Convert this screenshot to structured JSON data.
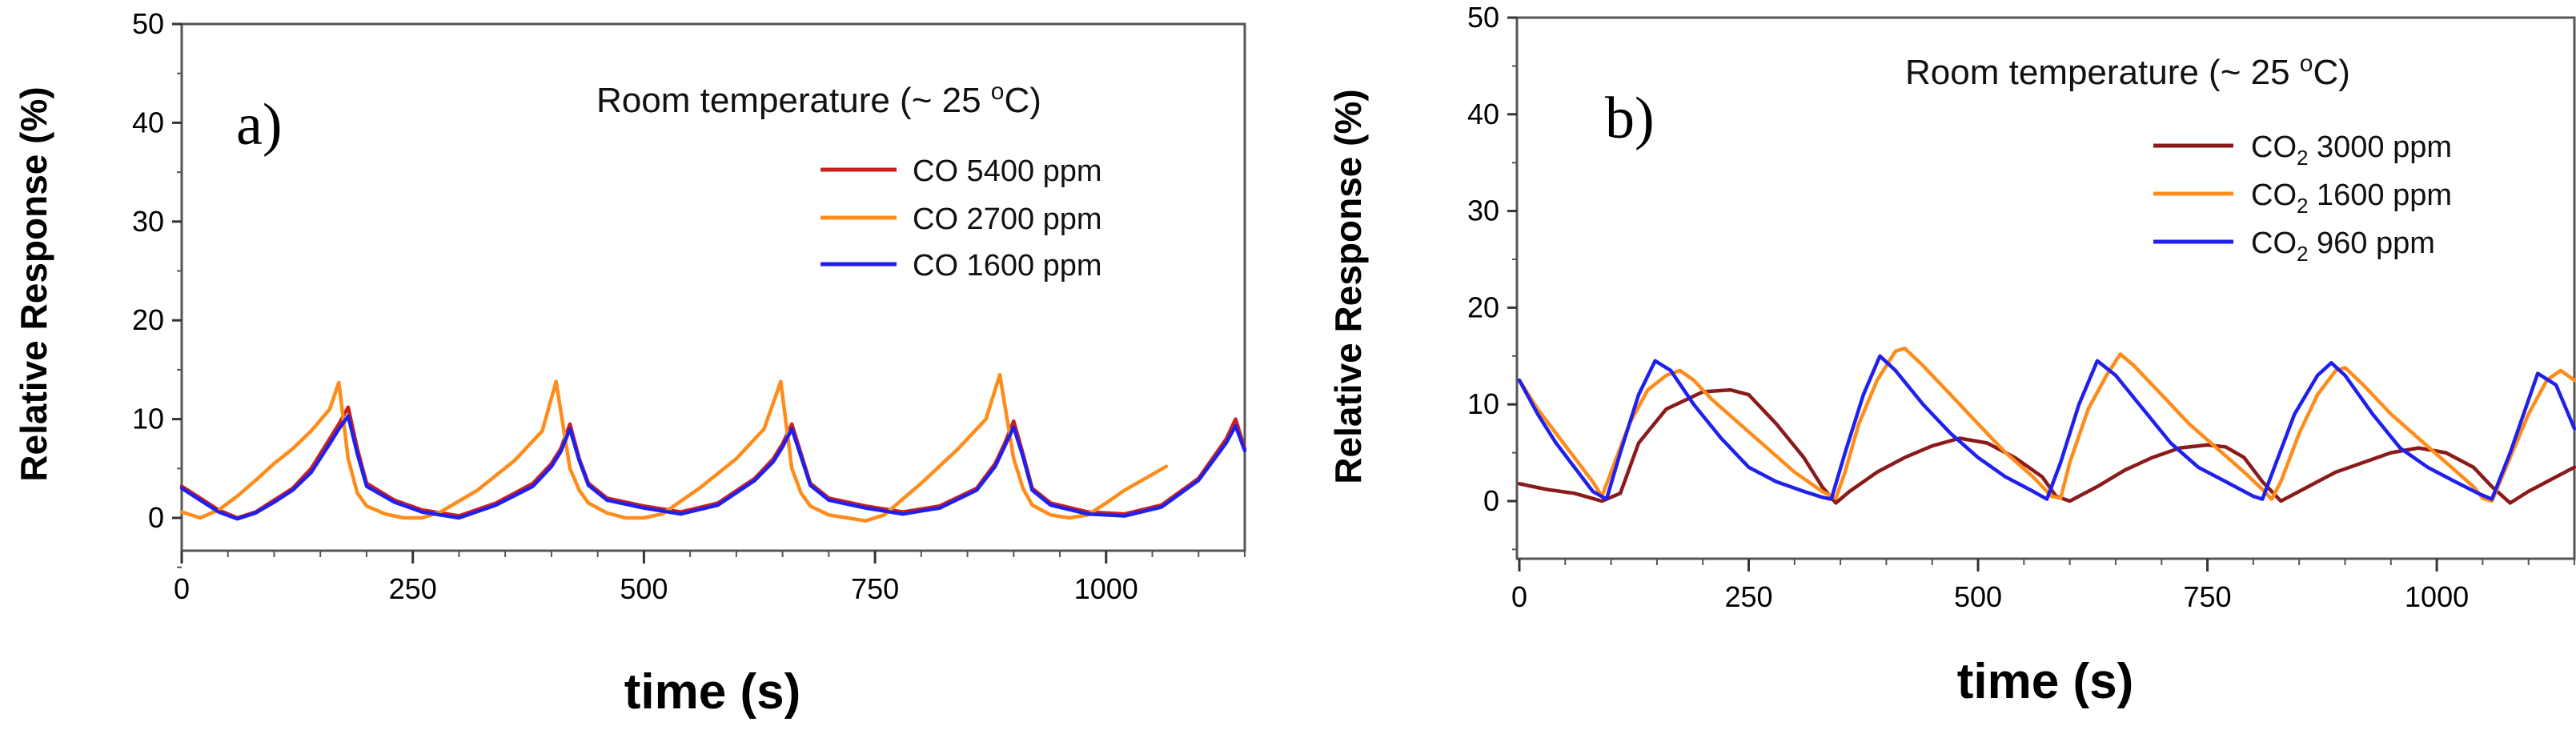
{
  "chart_data": [
    {
      "type": "line",
      "panel_label": "a)",
      "title": "Room temperature (~ 25 ",
      "title_sup": "o",
      "title_end": "C)",
      "xlabel": "time (s)",
      "ylabel": "Relative Response (%)",
      "xlim": [
        0,
        1150
      ],
      "ylim": [
        -5,
        50
      ],
      "xticks": [
        0,
        250,
        500,
        750,
        1000
      ],
      "yticks": [
        0,
        10,
        20,
        30,
        40,
        50
      ],
      "legend_position": "top-right",
      "series": [
        {
          "name": "CO 5400 ppm",
          "color": "#cc1f1f",
          "x": [
            0,
            20,
            40,
            60,
            80,
            100,
            120,
            140,
            160,
            170,
            180,
            190,
            200,
            230,
            260,
            300,
            340,
            380,
            400,
            410,
            420,
            430,
            440,
            460,
            500,
            540,
            580,
            620,
            640,
            650,
            660,
            670,
            680,
            700,
            740,
            780,
            820,
            860,
            880,
            890,
            900,
            910,
            920,
            940,
            980,
            1020,
            1060,
            1100,
            1130,
            1140,
            1150
          ],
          "y": [
            3.2,
            2,
            0.8,
            0,
            0.6,
            1.8,
            3,
            5,
            8,
            9.5,
            11.2,
            7,
            3.5,
            1.8,
            0.8,
            0.2,
            1.5,
            3.5,
            5.5,
            7,
            9.5,
            6,
            3.5,
            2,
            1.2,
            0.6,
            1.5,
            4,
            6,
            7.5,
            9.5,
            6.5,
            3.5,
            2,
            1.2,
            0.6,
            1.2,
            3,
            5.5,
            7.5,
            9.8,
            6.5,
            3,
            1.5,
            0.6,
            0.4,
            1.3,
            4,
            8,
            10,
            7
          ]
        },
        {
          "name": "CO 2700 ppm",
          "color": "#ff8c1a",
          "x": [
            0,
            20,
            40,
            60,
            80,
            100,
            120,
            140,
            160,
            170,
            180,
            190,
            200,
            220,
            240,
            260,
            280,
            320,
            360,
            390,
            405,
            420,
            430,
            440,
            460,
            480,
            500,
            520,
            560,
            600,
            630,
            648,
            660,
            670,
            680,
            700,
            720,
            740,
            760,
            800,
            840,
            870,
            885,
            900,
            910,
            920,
            940,
            960,
            980,
            1000,
            1020,
            1065
          ],
          "y": [
            0.6,
            0,
            0.8,
            2.2,
            3.8,
            5.5,
            7,
            8.8,
            11,
            13.7,
            6,
            2.5,
            1.2,
            0.4,
            0,
            0,
            0.6,
            2.8,
            5.8,
            8.8,
            13.8,
            5,
            2.8,
            1.5,
            0.5,
            0,
            0,
            0.4,
            3,
            6,
            9,
            13.8,
            5,
            2.5,
            1.2,
            0.3,
            0,
            -0.3,
            0.3,
            3.5,
            7,
            10,
            14.5,
            6,
            3,
            1.3,
            0.3,
            0,
            0.3,
            1.5,
            2.8,
            5.2
          ]
        },
        {
          "name": "CO 1600 ppm",
          "color": "#2020ee",
          "x": [
            0,
            20,
            40,
            60,
            80,
            100,
            120,
            140,
            160,
            170,
            180,
            190,
            200,
            230,
            260,
            300,
            340,
            380,
            400,
            410,
            420,
            430,
            440,
            460,
            500,
            540,
            580,
            620,
            640,
            650,
            660,
            670,
            680,
            700,
            740,
            780,
            820,
            860,
            880,
            890,
            900,
            910,
            920,
            940,
            980,
            1020,
            1060,
            1100,
            1130,
            1140,
            1150
          ],
          "y": [
            3,
            1.8,
            0.6,
            -0.1,
            0.5,
            1.6,
            2.8,
            4.6,
            7.5,
            9,
            10.3,
            6.5,
            3.2,
            1.6,
            0.6,
            0,
            1.3,
            3.2,
            5.2,
            6.7,
            9,
            5.8,
            3.3,
            1.8,
            1,
            0.4,
            1.3,
            3.8,
            5.7,
            7.2,
            9,
            6.2,
            3.3,
            1.8,
            1,
            0.4,
            1,
            2.8,
            5.2,
            7.2,
            9.2,
            6.2,
            2.8,
            1.3,
            0.4,
            0.2,
            1.1,
            3.8,
            7.6,
            9.3,
            6.8
          ]
        }
      ]
    },
    {
      "type": "line",
      "panel_label": "b)",
      "title": "Room temperature (~ 25 ",
      "title_sup": "o",
      "title_end": "C)",
      "xlabel": "time (s)",
      "ylabel": "Relative Response (%)",
      "xlim": [
        0,
        1150
      ],
      "ylim": [
        -5,
        50
      ],
      "xticks": [
        0,
        250,
        500,
        750,
        1000
      ],
      "yticks": [
        0,
        10,
        20,
        30,
        40,
        50
      ],
      "legend_position": "top-right",
      "series": [
        {
          "name": "CO",
          "sub": "2",
          "rest": " 3000 ppm",
          "color": "#8b1a1a",
          "x": [
            0,
            30,
            60,
            90,
            110,
            130,
            160,
            200,
            230,
            250,
            280,
            310,
            330,
            345,
            360,
            390,
            420,
            450,
            480,
            510,
            540,
            570,
            585,
            600,
            630,
            660,
            690,
            720,
            750,
            770,
            790,
            810,
            830,
            860,
            890,
            920,
            950,
            980,
            1010,
            1040,
            1060,
            1080,
            1100,
            1130,
            1150
          ],
          "y": [
            1.8,
            1.2,
            0.8,
            0,
            0.8,
            6,
            9.5,
            11.3,
            11.5,
            11,
            8,
            4.5,
            1.5,
            -0.2,
            1,
            3,
            4.5,
            5.7,
            6.5,
            6,
            4.5,
            2.5,
            0.5,
            0,
            1.5,
            3.2,
            4.5,
            5.5,
            5.8,
            5.6,
            4.5,
            2,
            0,
            1.5,
            3,
            4,
            5,
            5.5,
            5,
            3.5,
            1.5,
            -0.2,
            1,
            2.5,
            3.5
          ]
        },
        {
          "name": "CO",
          "sub": "2",
          "rest": " 1600 ppm",
          "color": "#ff8c1a",
          "x": [
            0,
            20,
            40,
            60,
            80,
            90,
            100,
            120,
            140,
            160,
            175,
            190,
            210,
            240,
            270,
            300,
            330,
            345,
            355,
            370,
            390,
            410,
            420,
            440,
            470,
            500,
            530,
            560,
            580,
            590,
            600,
            620,
            640,
            655,
            670,
            700,
            730,
            760,
            790,
            810,
            820,
            830,
            850,
            870,
            890,
            900,
            920,
            950,
            980,
            1010,
            1040,
            1050,
            1060,
            1080,
            1100,
            1120,
            1135,
            1150
          ],
          "y": [
            12.5,
            9.5,
            7,
            4.5,
            2,
            0.5,
            3,
            8,
            11.5,
            13,
            13.5,
            12.5,
            10.5,
            8,
            5.5,
            3,
            1,
            0.3,
            3,
            8,
            12.5,
            15.5,
            15.8,
            14,
            11,
            8,
            5,
            2.5,
            0.5,
            0.3,
            4,
            9.5,
            13,
            15.2,
            14,
            11,
            8,
            5.5,
            3,
            1.2,
            0.2,
            2,
            7,
            11,
            13.5,
            13.8,
            12,
            9,
            6.5,
            4,
            1.5,
            0.3,
            0,
            4.5,
            9,
            12.5,
            13.5,
            12.5
          ]
        },
        {
          "name": "CO",
          "sub": "2",
          "rest": " 960 ppm",
          "color": "#2020ee",
          "x": [
            0,
            20,
            40,
            60,
            80,
            95,
            110,
            130,
            148,
            165,
            190,
            220,
            250,
            280,
            310,
            330,
            340,
            355,
            375,
            393,
            410,
            440,
            470,
            500,
            530,
            560,
            575,
            590,
            610,
            630,
            650,
            680,
            710,
            740,
            770,
            800,
            810,
            825,
            845,
            870,
            885,
            900,
            930,
            960,
            990,
            1020,
            1045,
            1060,
            1080,
            1110,
            1130,
            1150
          ],
          "y": [
            12.5,
            9,
            6,
            3.5,
            1,
            0.2,
            5,
            11,
            14.5,
            13.5,
            10,
            6.5,
            3.5,
            2,
            1,
            0.4,
            0.2,
            5,
            11,
            15,
            13.5,
            10,
            7,
            4.5,
            2.5,
            1,
            0.2,
            4,
            10,
            14.5,
            13,
            9.5,
            6,
            3.5,
            2,
            0.5,
            0.2,
            4,
            9,
            13,
            14.3,
            13,
            9,
            5.5,
            3.5,
            2,
            0.8,
            0.2,
            5,
            13.2,
            12,
            7.5
          ]
        }
      ]
    }
  ]
}
